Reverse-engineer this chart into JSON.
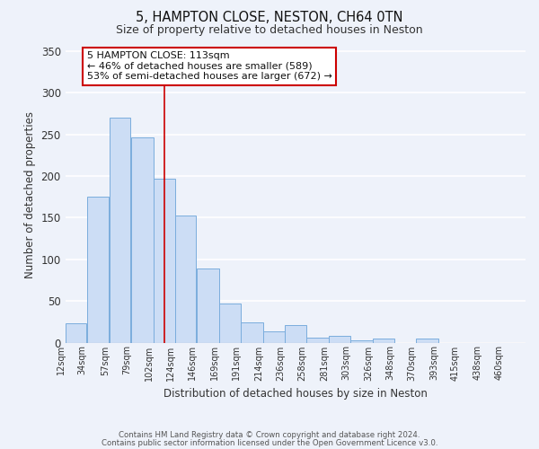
{
  "title1": "5, HAMPTON CLOSE, NESTON, CH64 0TN",
  "title2": "Size of property relative to detached houses in Neston",
  "xlabel": "Distribution of detached houses by size in Neston",
  "ylabel": "Number of detached properties",
  "bar_labels": [
    "12sqm",
    "34sqm",
    "57sqm",
    "79sqm",
    "102sqm",
    "124sqm",
    "146sqm",
    "169sqm",
    "191sqm",
    "214sqm",
    "236sqm",
    "258sqm",
    "281sqm",
    "303sqm",
    "326sqm",
    "348sqm",
    "370sqm",
    "393sqm",
    "415sqm",
    "438sqm",
    "460sqm"
  ],
  "bar_heights": [
    23,
    175,
    270,
    247,
    197,
    153,
    89,
    47,
    24,
    14,
    21,
    6,
    8,
    3,
    5,
    0,
    5,
    0,
    0,
    0,
    0
  ],
  "bar_color": "#ccddf5",
  "bar_edge_color": "#7aaddd",
  "ylim": [
    0,
    355
  ],
  "yticks": [
    0,
    50,
    100,
    150,
    200,
    250,
    300,
    350
  ],
  "vline_color": "#cc0000",
  "vline_sqm": 113,
  "annotation_text": "5 HAMPTON CLOSE: 113sqm\n← 46% of detached houses are smaller (589)\n53% of semi-detached houses are larger (672) →",
  "annotation_box_color": "#ffffff",
  "annotation_box_edge": "#cc0000",
  "footer1": "Contains HM Land Registry data © Crown copyright and database right 2024.",
  "footer2": "Contains public sector information licensed under the Open Government Licence v3.0.",
  "bg_color": "#eef2fa",
  "grid_color": "#ffffff"
}
